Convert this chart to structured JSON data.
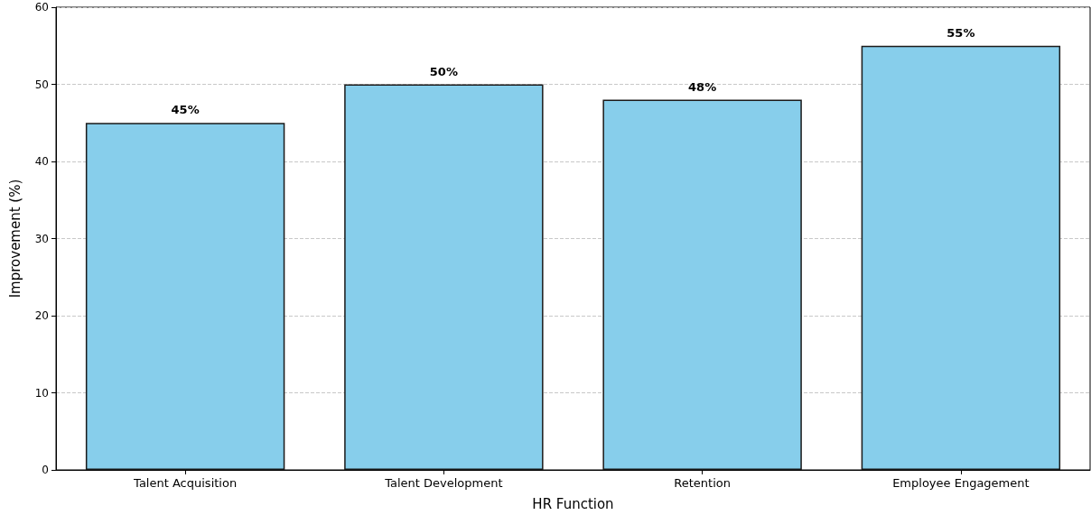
{
  "chart_data": {
    "type": "bar",
    "xlabel": "HR Function",
    "ylabel": "Improvement (%)",
    "categories": [
      "Talent Acquisition",
      "Talent Development",
      "Retention",
      "Employee Engagement"
    ],
    "values": [
      45,
      50,
      48,
      55
    ],
    "value_labels": [
      "45%",
      "50%",
      "48%",
      "55%"
    ],
    "color": "#87ceeb",
    "ylim": [
      0,
      60
    ],
    "yticks": [
      0,
      10,
      20,
      30,
      40,
      50,
      60
    ],
    "grid": "y"
  }
}
